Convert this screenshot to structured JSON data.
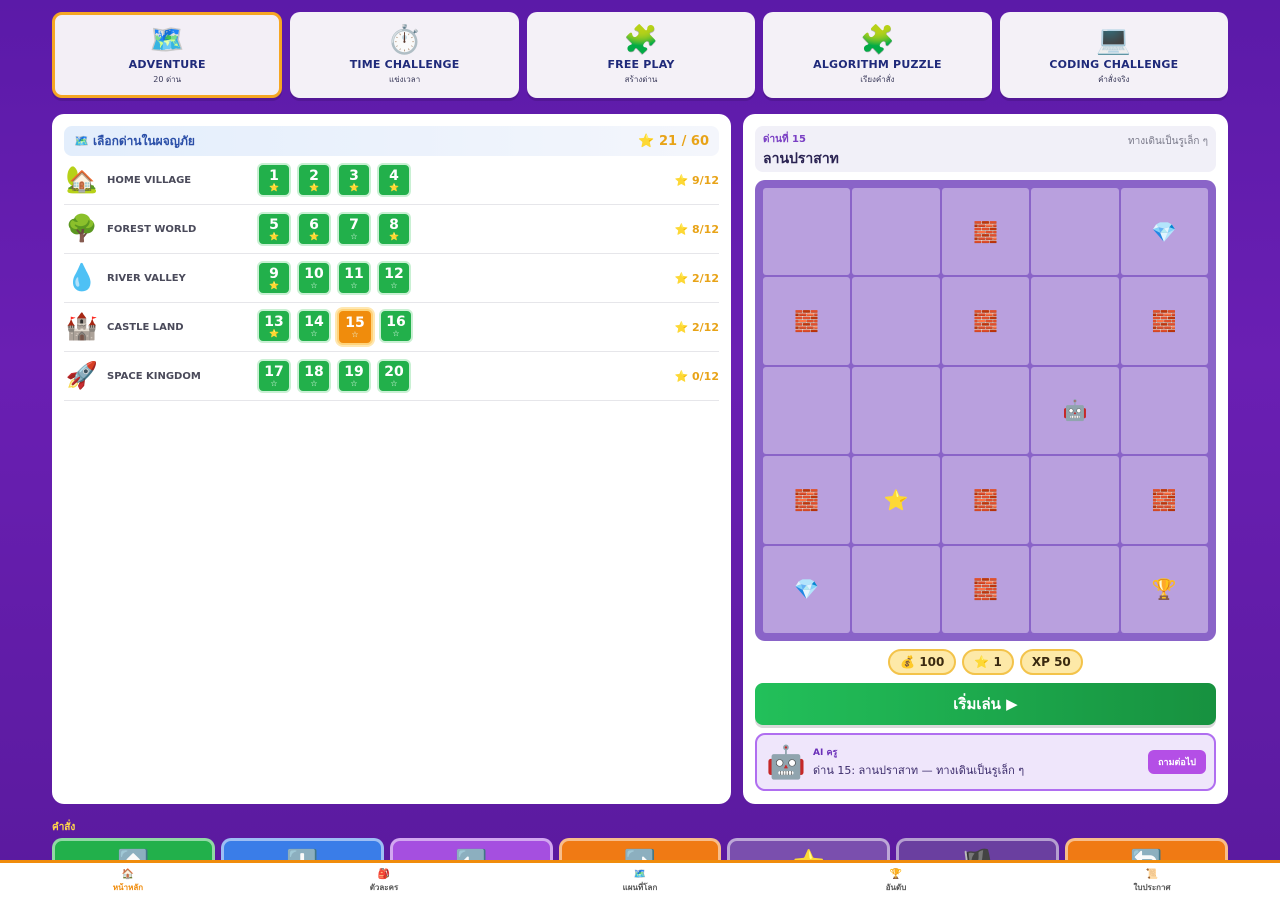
{
  "modes": [
    {
      "icon": "🗺️",
      "title": "ADVENTURE",
      "sub": "20 ด่าน",
      "active": true
    },
    {
      "icon": "⏱️",
      "title": "TIME CHALLENGE",
      "sub": "แข่งเวลา",
      "active": false
    },
    {
      "icon": "🧩",
      "title": "FREE PLAY",
      "sub": "สร้างด่าน",
      "active": false
    },
    {
      "icon": "🧩",
      "title": "ALGORITHM PUZZLE",
      "sub": "เรียงคำสั่ง",
      "active": false
    },
    {
      "icon": "💻",
      "title": "CODING CHALLENGE",
      "sub": "คำสั่งจริง",
      "active": false
    }
  ],
  "left": {
    "icon": "🗺️",
    "title": "เลือกด่านในผจญภัย",
    "stars": "⭐ 21 / 60",
    "worlds": [
      {
        "icon": "🏡",
        "name": "HOME VILLAGE",
        "score": "⭐ 9/12",
        "levels": [
          {
            "n": "1",
            "s": "⭐",
            "f": true
          },
          {
            "n": "2",
            "s": "⭐",
            "f": true
          },
          {
            "n": "3",
            "s": "⭐",
            "f": true
          },
          {
            "n": "4",
            "s": "⭐",
            "f": true
          }
        ]
      },
      {
        "icon": "🌳",
        "name": "FOREST WORLD",
        "score": "⭐ 8/12",
        "levels": [
          {
            "n": "5",
            "s": "⭐",
            "f": true
          },
          {
            "n": "6",
            "s": "⭐",
            "f": true
          },
          {
            "n": "7",
            "s": "☆",
            "f": false
          },
          {
            "n": "8",
            "s": "⭐",
            "f": true
          }
        ]
      },
      {
        "icon": "💧",
        "name": "RIVER VALLEY",
        "score": "⭐ 2/12",
        "levels": [
          {
            "n": "9",
            "s": "⭐",
            "f": true
          },
          {
            "n": "10",
            "s": "☆",
            "f": false
          },
          {
            "n": "11",
            "s": "☆",
            "f": false
          },
          {
            "n": "12",
            "s": "☆",
            "f": false
          }
        ]
      },
      {
        "icon": "🏰",
        "name": "CASTLE LAND",
        "score": "⭐ 2/12",
        "levels": [
          {
            "n": "13",
            "s": "⭐",
            "f": true
          },
          {
            "n": "14",
            "s": "☆",
            "f": false
          },
          {
            "n": "15",
            "s": "☆",
            "f": false,
            "current": true
          },
          {
            "n": "16",
            "s": "☆",
            "f": false
          }
        ]
      },
      {
        "icon": "🚀",
        "name": "SPACE KINGDOM",
        "score": "⭐ 0/12",
        "levels": [
          {
            "n": "17",
            "s": "☆",
            "f": false
          },
          {
            "n": "18",
            "s": "☆",
            "f": false
          },
          {
            "n": "19",
            "s": "☆",
            "f": false
          },
          {
            "n": "20",
            "s": "☆",
            "f": false
          }
        ]
      }
    ]
  },
  "right": {
    "level_label": "ด่านที่ 15",
    "level_name": "ลานปราสาท",
    "hint": "ทางเดินเป็นรูเล็ก ๆ",
    "grid": [
      "",
      "",
      "🧱",
      "",
      "💎",
      "🧱",
      "",
      "🧱",
      "",
      "🧱",
      "",
      "",
      "",
      "🤖",
      "",
      "🧱",
      "⭐",
      "🧱",
      "",
      "🧱",
      "💎",
      "",
      "🧱",
      "",
      "🏆"
    ],
    "rewards": [
      "💰 100",
      "⭐ 1",
      "XP 50"
    ],
    "start_label": "เริ่มเล่น ▶",
    "ai": {
      "avatar": "🤖",
      "label": "AI ครู",
      "message": "ด่าน 15: ลานปราสาท — ทางเดินเป็นรูเล็ก ๆ",
      "ask_label": "ถามต่อไป"
    }
  },
  "commands": {
    "label": "คำสั่ง",
    "items": [
      {
        "icon": "⬆️",
        "color": "#22b04b"
      },
      {
        "icon": "⬇️",
        "color": "#3a7de8"
      },
      {
        "icon": "⬅️",
        "color": "#a54fe0"
      },
      {
        "icon": "➡️",
        "color": "#f07a14"
      },
      {
        "icon": "⭐",
        "color": "#7a4fae"
      },
      {
        "icon": "🏴",
        "color": "#6a3fa0"
      },
      {
        "icon": "🔄",
        "color": "#f07a14"
      }
    ]
  },
  "nav": [
    {
      "icon": "🏠",
      "label": "หน้าหลัก",
      "active": true
    },
    {
      "icon": "🎒",
      "label": "ตัวละคร",
      "active": false
    },
    {
      "icon": "🗺️",
      "label": "แผนที่โลก",
      "active": false
    },
    {
      "icon": "🏆",
      "label": "อันดับ",
      "active": false
    },
    {
      "icon": "📜",
      "label": "ใบประกาศ",
      "active": false
    }
  ]
}
